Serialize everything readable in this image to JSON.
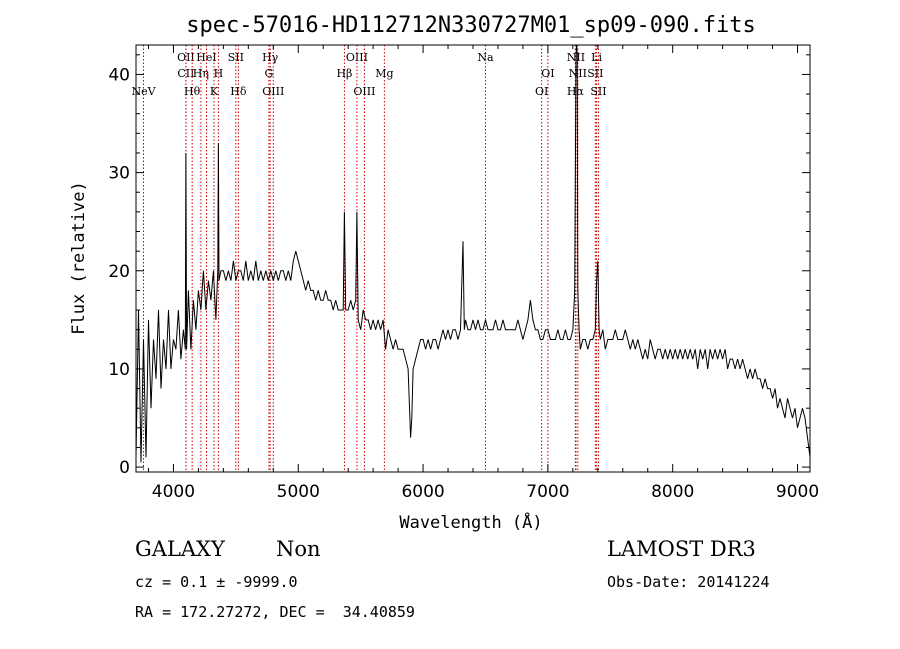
{
  "info": {
    "class": "GALAXY",
    "subclass": "Non",
    "survey": "LAMOST DR3",
    "cz": "cz = 0.1 ± -9999.0",
    "obsdate": "Obs-Date: 20141224",
    "radec": "RA = 172.27272, DEC =  34.40859"
  },
  "chart_data": {
    "type": "line",
    "title": "spec-57016-HD112712N330727M01_sp09-090.fits",
    "xlabel": "Wavelength (Å)",
    "ylabel": "Flux (relative)",
    "xlim": [
      3700,
      9100
    ],
    "ylim": [
      -0.5,
      43
    ],
    "xticks": [
      4000,
      5000,
      6000,
      7000,
      8000,
      9000
    ],
    "yticks": [
      0,
      10,
      20,
      30,
      40
    ],
    "colors": {
      "line": "#000000",
      "marker": "#cc0000"
    },
    "line_markers": [
      {
        "label": "NeV",
        "x": 3760,
        "row": 2
      },
      {
        "label": "OII",
        "x": 4100,
        "row": 0
      },
      {
        "label": "CII",
        "x": 4100,
        "row": 1
      },
      {
        "label": "Hθ",
        "x": 4150,
        "row": 2
      },
      {
        "label": "Hη",
        "x": 4220,
        "row": 1
      },
      {
        "label": "HeI",
        "x": 4265,
        "row": 0
      },
      {
        "label": "K",
        "x": 4325,
        "row": 2
      },
      {
        "label": "H",
        "x": 4360,
        "row": 1
      },
      {
        "label": "SII",
        "x": 4500,
        "row": 0
      },
      {
        "label": "Hδ",
        "x": 4520,
        "row": 2
      },
      {
        "label": "Hγ",
        "x": 4775,
        "row": 0
      },
      {
        "label": "G",
        "x": 4765,
        "row": 1
      },
      {
        "label": "OIII",
        "x": 4800,
        "row": 2
      },
      {
        "label": "Hβ",
        "x": 5370,
        "row": 1
      },
      {
        "label": "OIII",
        "x": 5470,
        "row": 0
      },
      {
        "label": "OIII",
        "x": 5530,
        "row": 2
      },
      {
        "label": "Mg",
        "x": 5690,
        "row": 1
      },
      {
        "label": "Na",
        "x": 6500,
        "row": 0
      },
      {
        "label": "OI",
        "x": 7000,
        "row": 1
      },
      {
        "label": "OI",
        "x": 6950,
        "row": 2
      },
      {
        "label": "NII",
        "x": 7225,
        "row": 0
      },
      {
        "label": "NII",
        "x": 7240,
        "row": 1
      },
      {
        "label": "Hα",
        "x": 7220,
        "row": 2
      },
      {
        "label": "Li",
        "x": 7390,
        "row": 0
      },
      {
        "label": "SII",
        "x": 7380,
        "row": 1
      },
      {
        "label": "SII",
        "x": 7405,
        "row": 2
      }
    ],
    "series": [
      {
        "points": [
          [
            3700,
            1
          ],
          [
            3720,
            16
          ],
          [
            3740,
            0.5
          ],
          [
            3760,
            13
          ],
          [
            3780,
            1
          ],
          [
            3800,
            15
          ],
          [
            3820,
            6
          ],
          [
            3840,
            13
          ],
          [
            3860,
            9
          ],
          [
            3880,
            16
          ],
          [
            3900,
            8
          ],
          [
            3920,
            13
          ],
          [
            3940,
            10
          ],
          [
            3960,
            16
          ],
          [
            3980,
            10
          ],
          [
            4000,
            13
          ],
          [
            4020,
            12
          ],
          [
            4040,
            16
          ],
          [
            4060,
            11
          ],
          [
            4080,
            14
          ],
          [
            4095,
            12
          ],
          [
            4100,
            32
          ],
          [
            4105,
            12
          ],
          [
            4120,
            18
          ],
          [
            4140,
            12
          ],
          [
            4160,
            17
          ],
          [
            4180,
            14
          ],
          [
            4200,
            18
          ],
          [
            4220,
            16
          ],
          [
            4240,
            20
          ],
          [
            4260,
            16
          ],
          [
            4280,
            19
          ],
          [
            4300,
            17
          ],
          [
            4320,
            20
          ],
          [
            4340,
            15
          ],
          [
            4355,
            20
          ],
          [
            4360,
            33
          ],
          [
            4365,
            19
          ],
          [
            4380,
            20
          ],
          [
            4400,
            20
          ],
          [
            4420,
            19
          ],
          [
            4440,
            20
          ],
          [
            4460,
            19
          ],
          [
            4480,
            21
          ],
          [
            4500,
            19
          ],
          [
            4520,
            20
          ],
          [
            4540,
            20
          ],
          [
            4560,
            19
          ],
          [
            4580,
            21
          ],
          [
            4600,
            19
          ],
          [
            4620,
            20
          ],
          [
            4640,
            19
          ],
          [
            4660,
            21
          ],
          [
            4680,
            19
          ],
          [
            4700,
            20
          ],
          [
            4720,
            19
          ],
          [
            4740,
            20
          ],
          [
            4760,
            19
          ],
          [
            4780,
            20
          ],
          [
            4800,
            19
          ],
          [
            4820,
            20
          ],
          [
            4840,
            19
          ],
          [
            4860,
            20
          ],
          [
            4880,
            20
          ],
          [
            4900,
            19
          ],
          [
            4920,
            20
          ],
          [
            4940,
            19
          ],
          [
            4960,
            21
          ],
          [
            4980,
            22
          ],
          [
            5000,
            21
          ],
          [
            5020,
            20
          ],
          [
            5040,
            19
          ],
          [
            5060,
            18
          ],
          [
            5080,
            19
          ],
          [
            5100,
            18
          ],
          [
            5120,
            18
          ],
          [
            5140,
            17
          ],
          [
            5160,
            18
          ],
          [
            5180,
            17
          ],
          [
            5200,
            17
          ],
          [
            5220,
            18
          ],
          [
            5240,
            17
          ],
          [
            5260,
            17
          ],
          [
            5280,
            16
          ],
          [
            5300,
            17
          ],
          [
            5320,
            16
          ],
          [
            5340,
            16
          ],
          [
            5360,
            16
          ],
          [
            5370,
            26
          ],
          [
            5380,
            16
          ],
          [
            5400,
            16
          ],
          [
            5420,
            17
          ],
          [
            5440,
            16
          ],
          [
            5460,
            17
          ],
          [
            5470,
            26
          ],
          [
            5480,
            15
          ],
          [
            5500,
            14
          ],
          [
            5520,
            16
          ],
          [
            5540,
            15
          ],
          [
            5560,
            15
          ],
          [
            5580,
            14
          ],
          [
            5600,
            15
          ],
          [
            5620,
            14
          ],
          [
            5640,
            15
          ],
          [
            5660,
            14
          ],
          [
            5680,
            15
          ],
          [
            5700,
            12
          ],
          [
            5720,
            14
          ],
          [
            5740,
            13
          ],
          [
            5760,
            12
          ],
          [
            5780,
            13
          ],
          [
            5800,
            12
          ],
          [
            5820,
            12
          ],
          [
            5840,
            12
          ],
          [
            5860,
            11
          ],
          [
            5880,
            10
          ],
          [
            5900,
            3
          ],
          [
            5910,
            5
          ],
          [
            5920,
            10
          ],
          [
            5940,
            11
          ],
          [
            5960,
            12
          ],
          [
            5980,
            13
          ],
          [
            6000,
            13
          ],
          [
            6020,
            12
          ],
          [
            6040,
            13
          ],
          [
            6060,
            12
          ],
          [
            6080,
            13
          ],
          [
            6100,
            13
          ],
          [
            6120,
            12
          ],
          [
            6140,
            13
          ],
          [
            6160,
            14
          ],
          [
            6180,
            13
          ],
          [
            6200,
            14
          ],
          [
            6220,
            13
          ],
          [
            6240,
            14
          ],
          [
            6260,
            14
          ],
          [
            6280,
            13
          ],
          [
            6300,
            14
          ],
          [
            6320,
            23
          ],
          [
            6330,
            14
          ],
          [
            6340,
            15
          ],
          [
            6360,
            14
          ],
          [
            6380,
            14
          ],
          [
            6400,
            15
          ],
          [
            6420,
            14
          ],
          [
            6440,
            15
          ],
          [
            6460,
            14
          ],
          [
            6480,
            14
          ],
          [
            6500,
            15
          ],
          [
            6520,
            14
          ],
          [
            6540,
            14
          ],
          [
            6560,
            14
          ],
          [
            6580,
            15
          ],
          [
            6600,
            14
          ],
          [
            6620,
            14
          ],
          [
            6640,
            15
          ],
          [
            6660,
            14
          ],
          [
            6680,
            14
          ],
          [
            6700,
            14
          ],
          [
            6720,
            14
          ],
          [
            6740,
            14
          ],
          [
            6760,
            15
          ],
          [
            6780,
            14
          ],
          [
            6800,
            13
          ],
          [
            6820,
            14
          ],
          [
            6840,
            15
          ],
          [
            6860,
            17
          ],
          [
            6880,
            15
          ],
          [
            6900,
            14
          ],
          [
            6920,
            14
          ],
          [
            6940,
            13
          ],
          [
            6960,
            13
          ],
          [
            6980,
            14
          ],
          [
            7000,
            14
          ],
          [
            7020,
            13
          ],
          [
            7040,
            13
          ],
          [
            7060,
            13
          ],
          [
            7080,
            14
          ],
          [
            7100,
            13
          ],
          [
            7120,
            13
          ],
          [
            7140,
            14
          ],
          [
            7160,
            13
          ],
          [
            7180,
            13
          ],
          [
            7200,
            14
          ],
          [
            7215,
            18
          ],
          [
            7225,
            42
          ],
          [
            7230,
            43
          ],
          [
            7235,
            42
          ],
          [
            7240,
            18
          ],
          [
            7250,
            14
          ],
          [
            7260,
            12
          ],
          [
            7280,
            13
          ],
          [
            7300,
            13
          ],
          [
            7320,
            12
          ],
          [
            7340,
            13
          ],
          [
            7360,
            13
          ],
          [
            7380,
            14
          ],
          [
            7390,
            19
          ],
          [
            7400,
            21
          ],
          [
            7410,
            14
          ],
          [
            7420,
            13
          ],
          [
            7440,
            14
          ],
          [
            7460,
            12
          ],
          [
            7480,
            13
          ],
          [
            7500,
            13
          ],
          [
            7520,
            13
          ],
          [
            7540,
            14
          ],
          [
            7560,
            13
          ],
          [
            7580,
            13
          ],
          [
            7600,
            13
          ],
          [
            7620,
            14
          ],
          [
            7640,
            13
          ],
          [
            7660,
            12
          ],
          [
            7680,
            13
          ],
          [
            7700,
            12
          ],
          [
            7720,
            13
          ],
          [
            7740,
            12
          ],
          [
            7760,
            11
          ],
          [
            7780,
            12
          ],
          [
            7800,
            11
          ],
          [
            7820,
            13
          ],
          [
            7840,
            12
          ],
          [
            7860,
            11
          ],
          [
            7880,
            12
          ],
          [
            7900,
            12
          ],
          [
            7920,
            11
          ],
          [
            7940,
            12
          ],
          [
            7960,
            11
          ],
          [
            7980,
            12
          ],
          [
            8000,
            11
          ],
          [
            8020,
            12
          ],
          [
            8040,
            11
          ],
          [
            8060,
            12
          ],
          [
            8080,
            11
          ],
          [
            8100,
            12
          ],
          [
            8120,
            11
          ],
          [
            8140,
            12
          ],
          [
            8160,
            11
          ],
          [
            8180,
            12
          ],
          [
            8200,
            10
          ],
          [
            8220,
            12
          ],
          [
            8240,
            11
          ],
          [
            8260,
            12
          ],
          [
            8280,
            10
          ],
          [
            8300,
            12
          ],
          [
            8320,
            11
          ],
          [
            8340,
            12
          ],
          [
            8360,
            11
          ],
          [
            8380,
            12
          ],
          [
            8400,
            11
          ],
          [
            8420,
            12
          ],
          [
            8440,
            10
          ],
          [
            8460,
            11
          ],
          [
            8480,
            11
          ],
          [
            8500,
            10
          ],
          [
            8520,
            11
          ],
          [
            8540,
            10
          ],
          [
            8560,
            11
          ],
          [
            8580,
            10
          ],
          [
            8600,
            9
          ],
          [
            8620,
            10
          ],
          [
            8640,
            9
          ],
          [
            8660,
            10
          ],
          [
            8680,
            9
          ],
          [
            8700,
            9
          ],
          [
            8720,
            8
          ],
          [
            8740,
            9
          ],
          [
            8760,
            8
          ],
          [
            8780,
            8
          ],
          [
            8800,
            7
          ],
          [
            8820,
            8
          ],
          [
            8840,
            6
          ],
          [
            8860,
            7
          ],
          [
            8880,
            6
          ],
          [
            8900,
            5
          ],
          [
            8920,
            7
          ],
          [
            8940,
            6
          ],
          [
            8960,
            5
          ],
          [
            8980,
            6
          ],
          [
            9000,
            4
          ],
          [
            9020,
            5
          ],
          [
            9040,
            6
          ],
          [
            9060,
            5
          ],
          [
            9080,
            3
          ],
          [
            9100,
            1
          ]
        ]
      }
    ]
  }
}
